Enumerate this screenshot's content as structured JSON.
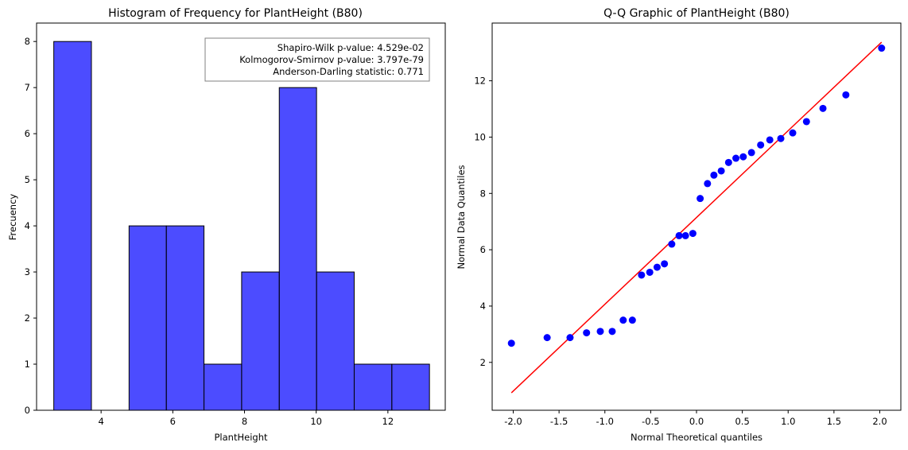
{
  "chart_data": [
    {
      "type": "bar",
      "title": "Histogram of Frequency for PlantHeight (B80)",
      "xlabel": "PlantHeight",
      "ylabel": "Frecuency",
      "xlim": [
        2.2,
        13.6
      ],
      "ylim": [
        0,
        8.4
      ],
      "xticks": [
        4,
        6,
        8,
        10,
        12
      ],
      "yticks": [
        0,
        1,
        2,
        3,
        4,
        5,
        6,
        7,
        8
      ],
      "bin_edges": [
        2.68,
        3.73,
        4.78,
        5.82,
        6.87,
        7.92,
        8.97,
        10.01,
        11.06,
        12.11,
        13.16
      ],
      "values": [
        8,
        0,
        4,
        4,
        1,
        3,
        7,
        3,
        1,
        1
      ],
      "bar_color": "#0000ff",
      "bar_opacity": 0.7,
      "edge_color": "#000000",
      "stats_lines": [
        "Shapiro-Wilk p-value: 4.529e-02",
        "Kolmogorov-Smirnov p-value: 3.797e-79",
        "Anderson-Darling statistic: 0.771"
      ],
      "stats_position": "top-right"
    },
    {
      "type": "scatter",
      "title": "Q-Q Graphic of PlantHeight (B80)",
      "xlabel": "Normal Theoretical quantiles",
      "ylabel": "Normal Data Quantiles",
      "xlim": [
        -2.23,
        2.23
      ],
      "ylim": [
        0.3,
        14.05
      ],
      "xticks": [
        -2.0,
        -1.5,
        -1.0,
        -0.5,
        0.0,
        0.5,
        1.0,
        1.5,
        2.0
      ],
      "yticks": [
        2,
        4,
        6,
        8,
        10,
        12
      ],
      "point_color": "#0000ff",
      "line_color": "#ff0000",
      "line": {
        "x": [
          -2.02,
          2.02
        ],
        "y": [
          0.92,
          13.37
        ]
      },
      "x": [
        -2.02,
        -1.63,
        -1.38,
        -1.2,
        -1.05,
        -0.92,
        -0.8,
        -0.7,
        -0.6,
        -0.51,
        -0.43,
        -0.35,
        -0.27,
        -0.19,
        -0.12,
        -0.04,
        0.04,
        0.12,
        0.19,
        0.27,
        0.35,
        0.43,
        0.51,
        0.6,
        0.7,
        0.8,
        0.92,
        1.05,
        1.2,
        1.38,
        1.63,
        2.02
      ],
      "y": [
        2.68,
        2.88,
        2.88,
        3.05,
        3.1,
        3.1,
        3.5,
        3.5,
        5.1,
        5.2,
        5.38,
        5.5,
        6.2,
        6.5,
        6.5,
        6.58,
        7.82,
        8.35,
        8.65,
        8.8,
        9.1,
        9.25,
        9.3,
        9.45,
        9.72,
        9.9,
        9.95,
        10.15,
        10.55,
        11.02,
        11.5,
        13.16
      ]
    }
  ]
}
